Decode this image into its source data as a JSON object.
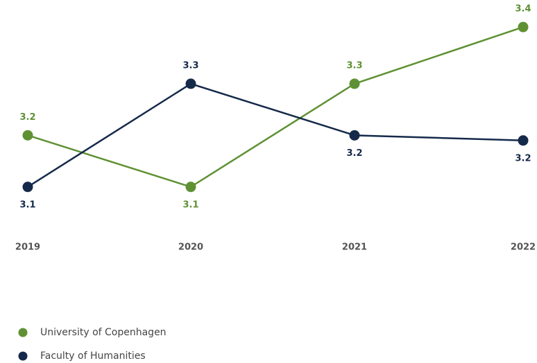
{
  "chart_data": {
    "type": "line",
    "categories": [
      "2019",
      "2020",
      "2021",
      "2022"
    ],
    "series": [
      {
        "name": "University of Copenhagen",
        "color": "#5f9134",
        "values": [
          3.2,
          3.1,
          3.3,
          3.41
        ],
        "value_labels": [
          "3.2",
          "3.1",
          "3.3",
          "3.4"
        ]
      },
      {
        "name": "Faculty of Humanities",
        "color": "#15294a",
        "values": [
          3.1,
          3.3,
          3.2,
          3.19
        ],
        "value_labels": [
          "3.1",
          "3.3",
          "3.2",
          "3.2"
        ]
      }
    ],
    "ylim": [
      3.05,
      3.45
    ]
  }
}
